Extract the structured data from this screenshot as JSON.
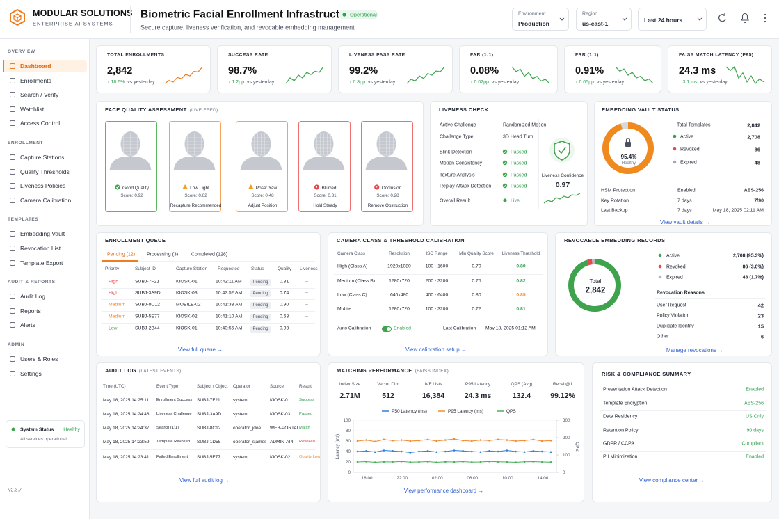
{
  "header": {
    "brand": "MODULAR SOLUTIONS",
    "brand_sub": "ENTERPRISE AI SYSTEMS",
    "title": "Biometric Facial Enrollment Infrastructure",
    "status": "Operational",
    "subtitle": "Secure capture, liveness verification, and revocable embedding management",
    "filters": [
      {
        "label": "Environment",
        "value": "Production"
      },
      {
        "label": "Region",
        "value": "us-east-1"
      },
      {
        "value": "Last 24 hours"
      }
    ]
  },
  "sidebar": {
    "sections": [
      {
        "title": "OVERVIEW",
        "items": [
          "Dashboard",
          "Enrollments",
          "Search / Verify",
          "Watchlist",
          "Access Control"
        ]
      },
      {
        "title": "ENROLLMENT",
        "items": [
          "Capture Stations",
          "Quality Thresholds",
          "Liveness Policies",
          "Camera Calibration"
        ]
      },
      {
        "title": "TEMPLATES",
        "items": [
          "Embedding Vault",
          "Revocation List",
          "Template Export"
        ]
      },
      {
        "title": "AUDIT & REPORTS",
        "items": [
          "Audit Log",
          "Reports",
          "Alerts"
        ]
      },
      {
        "title": "ADMIN",
        "items": [
          "Users & Roles",
          "Settings"
        ]
      }
    ],
    "system_status": {
      "label": "System Status",
      "value": "Healthy",
      "note": "All services operational"
    },
    "version": "v2.3.7"
  },
  "kpis": [
    {
      "label": "TOTAL ENROLLMENTS",
      "value": "2,842",
      "delta": "↑ 18.6%",
      "compare": "vs yesterday",
      "color": "#f07c1e",
      "trend": [
        3,
        4,
        3.5,
        5,
        4.6,
        6,
        5.5,
        7,
        6.8,
        8.5
      ]
    },
    {
      "label": "SUCCESS RATE",
      "value": "98.7%",
      "delta": "↑ 1.2pp",
      "compare": "vs yesterday",
      "color": "#3fa34d",
      "trend": [
        5,
        6,
        5.5,
        6.5,
        6,
        7,
        6.6,
        7.2,
        7,
        8
      ]
    },
    {
      "label": "LIVENESS PASS RATE",
      "value": "99.2%",
      "delta": "↑ 0.8pp",
      "compare": "vs yesterday",
      "color": "#3fa34d",
      "trend": [
        4,
        5,
        4.6,
        5.8,
        5.2,
        6.4,
        6,
        7,
        6.8,
        8
      ]
    },
    {
      "label": "FAR (1:1)",
      "value": "0.08%",
      "delta": "↓ 0.02pp",
      "compare": "vs yesterday",
      "color": "#3fa34d",
      "trend": [
        8,
        7,
        7.5,
        6,
        6.8,
        5.5,
        6,
        5,
        5.4,
        4.5
      ]
    },
    {
      "label": "FRR (1:1)",
      "value": "0.91%",
      "delta": "↓ 0.05pp",
      "compare": "vs yesterday",
      "color": "#3fa34d",
      "trend": [
        8,
        7.2,
        7.6,
        6.5,
        7,
        6,
        6.3,
        5.5,
        5.8,
        5
      ]
    },
    {
      "label": "FAISS MATCH LATENCY (P95)",
      "value": "24.3 ms",
      "delta": "↓ 3.1 ms",
      "compare": "vs yesterday",
      "color": "#3fa34d",
      "trend": [
        7,
        6.5,
        7,
        5.5,
        6.2,
        5,
        5.8,
        4.8,
        5.4,
        5
      ]
    }
  ],
  "face_quality": {
    "title": "FACE QUALITY ASSESSMENT",
    "subtitle": "(LIVE FEED)",
    "cards": [
      {
        "status": "Good Quality",
        "score": "Score: 0.92",
        "color": "#5cb85c"
      },
      {
        "status": "Low Light",
        "score": "Score: 0.62",
        "action": "Recapture Recommended",
        "color": "#f5a25a"
      },
      {
        "status": "Pose: Yaw",
        "score": "Score: 0.48",
        "action": "Adjust Position",
        "color": "#f5a25a"
      },
      {
        "status": "Blurred",
        "score": "Score: 0.31",
        "action": "Hold Steady",
        "color": "#ec7070"
      },
      {
        "status": "Occlusion",
        "score": "Score: 0.28",
        "action": "Remove Obstruction",
        "color": "#ec7070"
      }
    ]
  },
  "liveness": {
    "title": "LIVENESS CHECK",
    "rows": [
      {
        "label": "Active Challenge",
        "value": "Randomized Motion"
      },
      {
        "label": "Challenge Type",
        "value": "3D Head Turn"
      },
      {
        "label": "Blink Detection",
        "value": "Passed",
        "icon": "check"
      },
      {
        "label": "Motion Consistency",
        "value": "Passed",
        "icon": "check"
      },
      {
        "label": "Texture Analysis",
        "value": "Passed",
        "icon": "check"
      },
      {
        "label": "Replay Attack Detection",
        "value": "Passed",
        "icon": "check"
      },
      {
        "label": "Overall Result",
        "value": "Live",
        "icon": "dot"
      }
    ],
    "confidence_label": "Liveness Confidence",
    "confidence": "0.97",
    "confidence_trend": [
      4,
      5,
      4.5,
      6,
      5.5,
      6.5,
      6,
      7,
      6.8,
      7.5
    ]
  },
  "vault": {
    "title": "EMBEDDING VAULT STATUS",
    "health": {
      "value": 95.4,
      "label": "95.4%",
      "status": "Healthy",
      "color": "#f08a1e"
    },
    "stats": [
      {
        "label": "Total Templates",
        "value": "2,842"
      },
      {
        "label": "Active",
        "value": "2,708",
        "color": "#2e9e4f"
      },
      {
        "label": "Revoked",
        "value": "86",
        "color": "#e5484d"
      },
      {
        "label": "Expired",
        "value": "48",
        "color": "#a3a8b0"
      }
    ],
    "security": [
      [
        "HSM Protection",
        "Enabled",
        "AES-256"
      ],
      [
        "Key Rotation",
        "7 days",
        "7/90"
      ],
      [
        "Last Backup",
        "7 days",
        "May 18, 2025 02:11 AM"
      ]
    ],
    "link": "View vault details →"
  },
  "queue": {
    "title": "ENROLLMENT QUEUE",
    "tabs": [
      "Pending (12)",
      "Processing (3)",
      "Completed (128)"
    ],
    "columns": [
      "Priority",
      "Subject ID",
      "Capture Station",
      "Requested",
      "Status",
      "Quality",
      "Liveness"
    ],
    "rows": [
      [
        "High",
        "SUBJ-7F21",
        "KIOSK-01",
        "10:42:11 AM",
        "Pending",
        "0.81",
        "–"
      ],
      [
        "High",
        "SUBJ-3A9D",
        "KIOSK-03",
        "10:42:52 AM",
        "Pending",
        "0.74",
        "–"
      ],
      [
        "Medium",
        "SUBJ-8C12",
        "MOBILE-02",
        "10:41:33 AM",
        "Pending",
        "0.90",
        "–"
      ],
      [
        "Medium",
        "SUBJ-5E77",
        "KIOSK-02",
        "10:41:10 AM",
        "Pending",
        "0.68",
        "–"
      ],
      [
        "Low",
        "SUBJ-2B44",
        "KIOSK-01",
        "10:40:55 AM",
        "Pending",
        "0.93",
        "–"
      ]
    ],
    "priority_colors": [
      "#e5484d",
      "#e5484d",
      "#f08a1e",
      "#f08a1e",
      "#2e9e4f"
    ],
    "link": "View full queue →"
  },
  "camera": {
    "title": "CAMERA CLASS & THRESHOLD CALIBRATION",
    "columns": [
      "Camera Class",
      "Resolution",
      "ISO Range",
      "Min Quality Score",
      "Liveness Threshold"
    ],
    "rows": [
      [
        "High (Class A)",
        "1920x1080",
        "100 - 1600",
        "0.70",
        "0.80"
      ],
      [
        "Medium (Class B)",
        "1280x720",
        "200 - 3200",
        "0.75",
        "0.82"
      ],
      [
        "Low (Class C)",
        "640x480",
        "400 - 6400",
        "0.80",
        "0.85"
      ],
      [
        "Mobile",
        "1280x720",
        "100 - 3200",
        "0.72",
        "0.81"
      ]
    ],
    "threshold_colors": [
      "#2e9e4f",
      "#2e9e4f",
      "#f08a1e",
      "#2e9e4f"
    ],
    "auto_label": "Auto Calibration",
    "auto_value": "Enabled",
    "last_label": "Last Calibration",
    "last_value": "May 18, 2025 01:12 AM",
    "link": "View calibration setup →"
  },
  "revocable": {
    "title": "REVOCABLE EMBEDDING RECORDS",
    "total_label": "Total",
    "total": "2,842",
    "segments": [
      {
        "name": "Active",
        "value": 2708,
        "label": "2,708 (95.3%)",
        "color": "#3fa34d"
      },
      {
        "name": "Revoked",
        "value": 86,
        "label": "86 (3.0%)",
        "color": "#e5484d"
      },
      {
        "name": "Expired",
        "value": 48,
        "label": "48 (1.7%)",
        "color": "#b5b9c0"
      }
    ],
    "reasons_title": "Revocation Reasons",
    "reasons": [
      [
        "User Request",
        "42"
      ],
      [
        "Policy Violation",
        "23"
      ],
      [
        "Duplicate Identity",
        "15"
      ],
      [
        "Other",
        "6"
      ]
    ],
    "link": "Manage revocations →"
  },
  "audit": {
    "title": "AUDIT LOG",
    "subtitle": "(LATEST EVENTS)",
    "columns": [
      "Time (UTC)",
      "Event Type",
      "Subject / Object",
      "Operator",
      "Source",
      "Result"
    ],
    "rows": [
      [
        "May 18, 2025 14:25:11",
        "Enrollment Success",
        "SUBJ-7F21",
        "system",
        "KIOSK-01",
        "Success"
      ],
      [
        "May 18, 2025 14:24:48",
        "Liveness Challenge",
        "SUBJ-3A9D",
        "system",
        "KIOSK-03",
        "Passed"
      ],
      [
        "May 18, 2025 14:24:37",
        "Search (1:1)",
        "SUBJ-8C12",
        "operator_jdoe",
        "WEB-PORTAL",
        "Match"
      ],
      [
        "May 18, 2025 14:23:59",
        "Template Revoked",
        "SUBJ-1D55",
        "operator_sjames",
        "ADMIN-API",
        "Revoked"
      ],
      [
        "May 18, 2025 14:23:41",
        "Failed Enrollment",
        "SUBJ-5E77",
        "system",
        "KIOSK-02",
        "Quality Low"
      ]
    ],
    "result_colors": [
      "#2e9e4f",
      "#2e9e4f",
      "#2e9e4f",
      "#e5484d",
      "#f08a1e"
    ],
    "link": "View full audit log →"
  },
  "matching": {
    "title": "MATCHING PERFORMANCE",
    "subtitle": "(FAISS INDEX)",
    "stats": [
      {
        "label": "Index Size",
        "value": "2.71M"
      },
      {
        "label": "Vector Dim",
        "value": "512"
      },
      {
        "label": "IVF Lists",
        "value": "16,384"
      },
      {
        "label": "P95 Latency",
        "value": "24.3 ms"
      },
      {
        "label": "QPS (Avg)",
        "value": "132.4"
      },
      {
        "label": "Recall@1",
        "value": "99.12%"
      }
    ],
    "link": "View performance dashboard →"
  },
  "chart_data": {
    "type": "line",
    "categories": [
      null,
      "18:00",
      null,
      null,
      null,
      "22:00",
      null,
      null,
      null,
      "02:00",
      null,
      null,
      null,
      "06:00",
      null,
      null,
      null,
      "10:00",
      null,
      null,
      null,
      "14:00",
      null
    ],
    "series": [
      {
        "name": "P50 Latency (ms)",
        "color": "#2f7fd8",
        "values": [
          40,
          41,
          39,
          42,
          41,
          40,
          38,
          40,
          41,
          39,
          40,
          42,
          41,
          40,
          39,
          41,
          40,
          42,
          40,
          39,
          41,
          40,
          39
        ]
      },
      {
        "name": "P95 Latency (ms)",
        "color": "#f08a2c",
        "values": [
          60,
          62,
          59,
          63,
          61,
          62,
          60,
          61,
          63,
          60,
          62,
          64,
          61,
          60,
          62,
          61,
          63,
          62,
          60,
          61,
          63,
          60,
          61
        ]
      },
      {
        "name": "QPS",
        "color": "#49b05a",
        "axis": "y2",
        "values": [
          60,
          62,
          58,
          61,
          60,
          63,
          59,
          60,
          62,
          58,
          61,
          60,
          62,
          59,
          60,
          63,
          61,
          60,
          58,
          61,
          62,
          60,
          59
        ]
      }
    ],
    "ylabel": "Latency (ms)",
    "y2label": "QPS",
    "ylim": [
      0,
      100
    ],
    "yticks": [
      0,
      20,
      40,
      60,
      80,
      100
    ],
    "y2lim": [
      0,
      300
    ],
    "y2ticks": [
      0,
      100,
      200,
      300
    ],
    "grid": true
  },
  "risk": {
    "title": "RISK & COMPLIANCE SUMMARY",
    "rows": [
      [
        "Presentation Attack Detection",
        "Enabled"
      ],
      [
        "Template Encryption",
        "AES-256"
      ],
      [
        "Data Residency",
        "US Only"
      ],
      [
        "Retention Policy",
        "90 days"
      ],
      [
        "GDPR / CCPA",
        "Compliant"
      ],
      [
        "PII Minimization",
        "Enabled"
      ]
    ],
    "link": "View compliance center →"
  }
}
